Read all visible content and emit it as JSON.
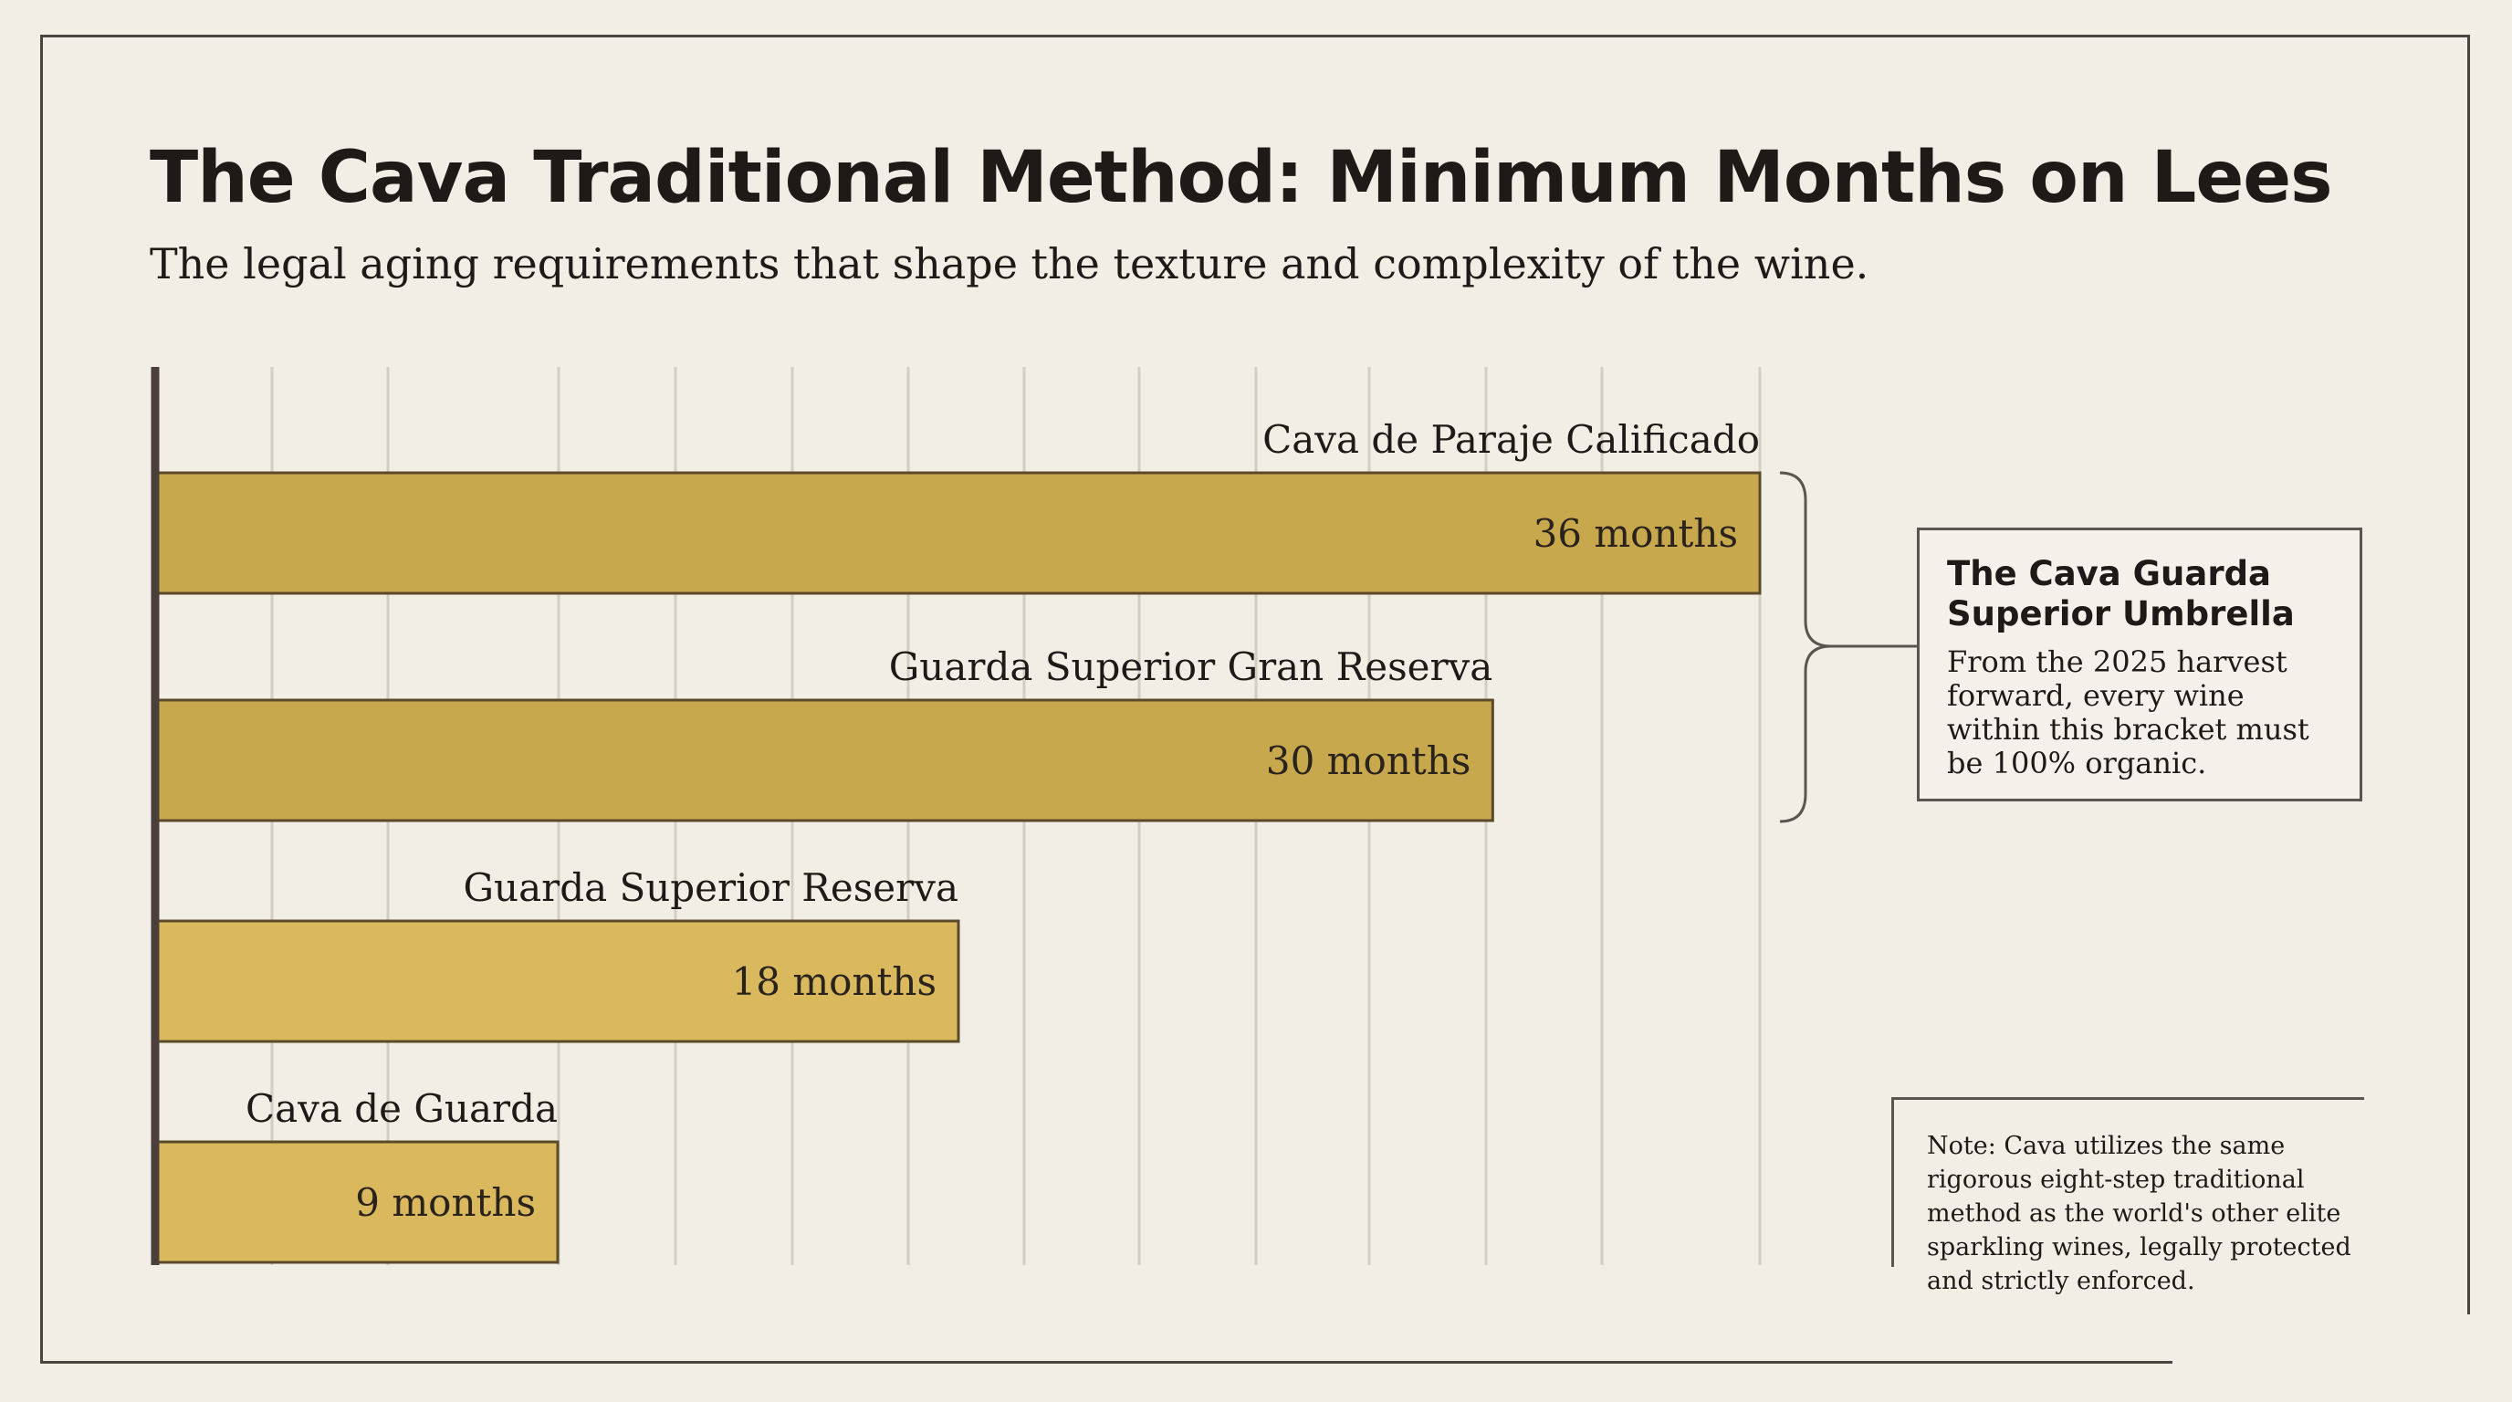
{
  "title": "The Cava Traditional Method: Minimum Months on Lees",
  "subtitle": "The legal aging requirements that shape the texture and complexity of the wine.",
  "chart_data": {
    "type": "bar",
    "orientation": "horizontal",
    "categories": [
      "Cava de Paraje Calificado",
      "Guarda Superior Gran Reserva",
      "Guarda Superior Reserva",
      "Cava de Guarda"
    ],
    "values": [
      36,
      30,
      18,
      9
    ],
    "value_labels": [
      "36 months",
      "30 months",
      "18 months",
      "9 months"
    ],
    "xlim": [
      0,
      36
    ],
    "grid": true,
    "colors": {
      "bar_dark": "#c8a84c",
      "bar_light": "#d9b85e",
      "bar_stroke": "#5a4a2a",
      "axis": "#4a3f3a",
      "grid": "#d3cec4"
    }
  },
  "callout": {
    "title": "The Cava Guarda Superior Umbrella",
    "body": "From the 2025 harvest forward, every wine within this bracket must be 100% organic."
  },
  "note": {
    "text": "Note: Cava utilizes the same rigorous eight-step traditional method as the world's other elite sparkling wines, legally protected and strictly enforced."
  }
}
